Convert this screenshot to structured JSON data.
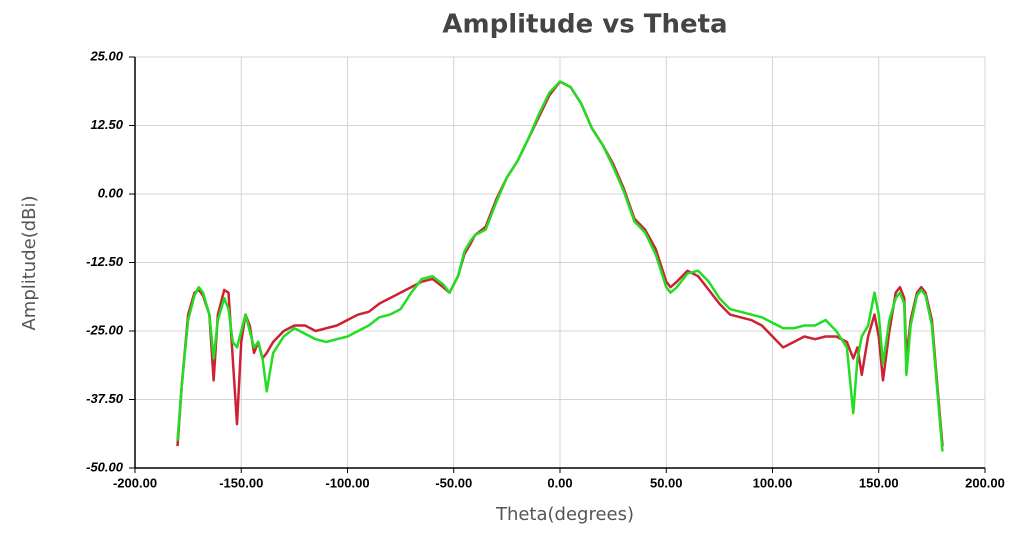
{
  "chart_data": {
    "type": "line",
    "title": "Amplitude vs Theta",
    "x_label": "Theta(degrees)",
    "y_label": "Amplitude(dBi)",
    "x": [
      -180,
      -178,
      -175,
      -172,
      -170,
      -168,
      -165,
      -163,
      -161,
      -158,
      -156,
      -154,
      -152,
      -150,
      -148,
      -146,
      -144,
      -142,
      -140,
      -138,
      -135,
      -130,
      -125,
      -120,
      -115,
      -110,
      -105,
      -100,
      -95,
      -90,
      -85,
      -80,
      -75,
      -70,
      -65,
      -60,
      -55,
      -52,
      -48,
      -45,
      -42,
      -40,
      -35,
      -30,
      -25,
      -20,
      -15,
      -10,
      -5,
      0,
      5,
      10,
      15,
      20,
      25,
      30,
      35,
      40,
      45,
      50,
      52,
      55,
      60,
      65,
      70,
      75,
      80,
      85,
      90,
      95,
      100,
      105,
      110,
      115,
      120,
      125,
      130,
      135,
      138,
      140,
      142,
      145,
      148,
      150,
      152,
      155,
      158,
      160,
      162,
      163,
      165,
      168,
      170,
      172,
      175,
      178,
      180
    ],
    "series": [
      {
        "color": "#cc2233",
        "values": [
          -46,
          -35,
          -22,
          -18,
          -17.5,
          -18.5,
          -22,
          -34,
          -22,
          -17.5,
          -18,
          -30,
          -42,
          -27,
          -22,
          -24,
          -29,
          -27,
          -30,
          -29,
          -27,
          -25,
          -24,
          -24,
          -25,
          -24.5,
          -24,
          -23,
          -22,
          -21.5,
          -20,
          -19,
          -18,
          -17,
          -16,
          -15.5,
          -17,
          -18,
          -15,
          -11,
          -9,
          -7.5,
          -6,
          -1,
          3,
          6,
          10,
          14,
          18,
          20.5,
          19.5,
          16.5,
          12,
          9,
          5.5,
          1,
          -4.5,
          -6.5,
          -10,
          -16,
          -17,
          -16,
          -14,
          -15,
          -17.5,
          -20,
          -22,
          -22.5,
          -23,
          -24,
          -26,
          -28,
          -27,
          -26,
          -26.5,
          -26,
          -26,
          -27,
          -30,
          -28,
          -33,
          -26,
          -22,
          -26,
          -34,
          -25,
          -18,
          -17,
          -19,
          -30,
          -23,
          -18,
          -17,
          -18,
          -23,
          -37,
          -46
        ]
      },
      {
        "color": "#22dd22",
        "values": [
          -45,
          -35,
          -23,
          -18.5,
          -17,
          -18,
          -22,
          -30,
          -23,
          -19,
          -21,
          -27,
          -28,
          -25,
          -22,
          -25,
          -28,
          -27,
          -30,
          -36,
          -29,
          -26,
          -24.5,
          -25.5,
          -26.5,
          -27,
          -26.5,
          -26,
          -25,
          -24,
          -22.5,
          -22,
          -21,
          -18,
          -15.5,
          -15,
          -16.5,
          -18,
          -15,
          -10.5,
          -8.5,
          -7.5,
          -6.5,
          -1.5,
          3,
          6,
          10,
          14.5,
          18.5,
          20.5,
          19.5,
          16.5,
          12,
          9,
          5,
          0.5,
          -5,
          -7,
          -11,
          -17,
          -18,
          -17,
          -14.5,
          -14,
          -16,
          -19,
          -21,
          -21.5,
          -22,
          -22.5,
          -23.5,
          -24.5,
          -24.5,
          -24,
          -24,
          -23,
          -25,
          -28,
          -40,
          -30,
          -26,
          -24,
          -18,
          -22,
          -31,
          -23,
          -19,
          -18,
          -20,
          -33,
          -24,
          -18.5,
          -17.5,
          -18.5,
          -24,
          -38,
          -47
        ]
      }
    ],
    "xlim": [
      -200,
      200
    ],
    "ylim": [
      -50,
      25
    ],
    "xticks": [
      {
        "value": -200,
        "label": "-200.00"
      },
      {
        "value": -150,
        "label": "-150.00"
      },
      {
        "value": -100,
        "label": "-100.00"
      },
      {
        "value": -50,
        "label": "-50.00"
      },
      {
        "value": 0,
        "label": "0.00"
      },
      {
        "value": 50,
        "label": "50.00"
      },
      {
        "value": 100,
        "label": "100.00"
      },
      {
        "value": 150,
        "label": "150.00"
      },
      {
        "value": 200,
        "label": "200.00"
      }
    ],
    "yticks": [
      {
        "value": -50,
        "label": "-50.00"
      },
      {
        "value": -37.5,
        "label": "-37.50"
      },
      {
        "value": -25,
        "label": "-25.00"
      },
      {
        "value": -12.5,
        "label": "-12.50"
      },
      {
        "value": 0,
        "label": "0.00"
      },
      {
        "value": 12.5,
        "label": "12.50"
      },
      {
        "value": 25,
        "label": "25.00"
      }
    ],
    "grid": true
  }
}
